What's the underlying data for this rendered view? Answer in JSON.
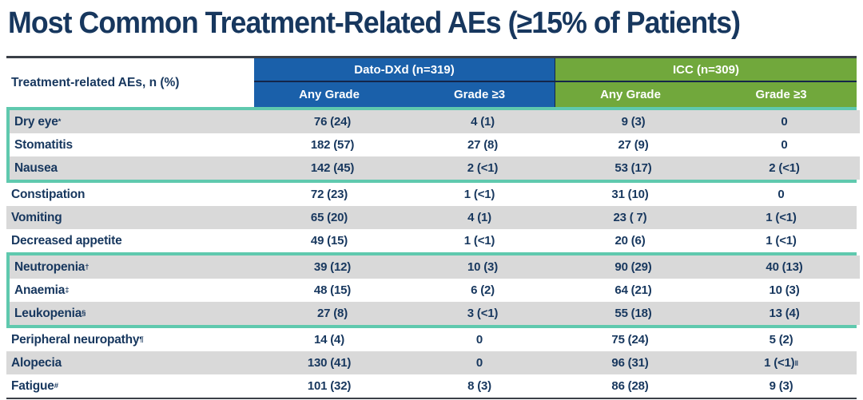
{
  "title": "Most Common Treatment-Related AEs (≥15% of Patients)",
  "colors": {
    "title_navy": "#17375E",
    "dato_blue": "#1A60AA",
    "icc_green": "#71A83C",
    "highlight_teal": "#5FC9AE",
    "shaded_row_gray": "#D9D9D9",
    "table_border_dark": "#3A3F47"
  },
  "table": {
    "row_header": "Treatment-related AEs, n (%)",
    "groups": [
      {
        "label": "Dato-DXd (n=319)"
      },
      {
        "label": "ICC (n=309)"
      }
    ],
    "subheaders": [
      "Any Grade",
      "Grade ≥3",
      "Any Grade",
      "Grade ≥3"
    ],
    "row_groups": [
      {
        "highlighted": true,
        "rows": [
          {
            "label": "Dry eye",
            "label_sup": "*",
            "values": [
              "76 (24)",
              "4 (1)",
              "9 (3)",
              "0"
            ],
            "value_sups": [
              "",
              "",
              "",
              ""
            ]
          },
          {
            "label": "Stomatitis",
            "label_sup": "",
            "values": [
              "182 (57)",
              "27 (8)",
              "27 (9)",
              "0"
            ],
            "value_sups": [
              "",
              "",
              "",
              ""
            ]
          },
          {
            "label": "Nausea",
            "label_sup": "",
            "values": [
              "142 (45)",
              "2 (<1)",
              "53 (17)",
              "2 (<1)"
            ],
            "value_sups": [
              "",
              "",
              "",
              ""
            ]
          }
        ]
      },
      {
        "highlighted": false,
        "rows": [
          {
            "label": "Constipation",
            "label_sup": "",
            "values": [
              "72 (23)",
              "1 (<1)",
              "31 (10)",
              "0"
            ],
            "value_sups": [
              "",
              "",
              "",
              ""
            ]
          },
          {
            "label": "Vomiting",
            "label_sup": "",
            "values": [
              "65 (20)",
              "4 (1)",
              "23 ( 7)",
              "1 (<1)"
            ],
            "value_sups": [
              "",
              "",
              "",
              ""
            ]
          },
          {
            "label": "Decreased appetite",
            "label_sup": "",
            "values": [
              "49 (15)",
              "1 (<1)",
              "20 (6)",
              "1 (<1)"
            ],
            "value_sups": [
              "",
              "",
              "",
              ""
            ]
          }
        ]
      },
      {
        "highlighted": true,
        "rows": [
          {
            "label": "Neutropenia",
            "label_sup": "†",
            "values": [
              "39 (12)",
              "10 (3)",
              "90 (29)",
              "40 (13)"
            ],
            "value_sups": [
              "",
              "",
              "",
              ""
            ]
          },
          {
            "label": "Anaemia",
            "label_sup": "‡",
            "values": [
              "48 (15)",
              "6 (2)",
              "64 (21)",
              "10 (3)"
            ],
            "value_sups": [
              "",
              "",
              "",
              ""
            ]
          },
          {
            "label": "Leukopenia",
            "label_sup": "§",
            "values": [
              "27 (8)",
              "3 (<1)",
              "55 (18)",
              "13 (4)"
            ],
            "value_sups": [
              "",
              "",
              "",
              ""
            ]
          }
        ]
      },
      {
        "highlighted": false,
        "rows": [
          {
            "label": "Peripheral neuropathy",
            "label_sup": "¶",
            "values": [
              "14 (4)",
              "0",
              "75 (24)",
              "5 (2)"
            ],
            "value_sups": [
              "",
              "",
              "",
              ""
            ]
          },
          {
            "label": "Alopecia",
            "label_sup": "",
            "values": [
              "130 (41)",
              "0",
              "96 (31)",
              "1 (<1)"
            ],
            "value_sups": [
              "",
              "",
              "",
              "‖"
            ]
          },
          {
            "label": "Fatigue",
            "label_sup": "#",
            "values": [
              "101 (32)",
              "8 (3)",
              "86 (28)",
              "9 (3)"
            ],
            "value_sups": [
              "",
              "",
              "",
              ""
            ]
          }
        ]
      }
    ]
  }
}
